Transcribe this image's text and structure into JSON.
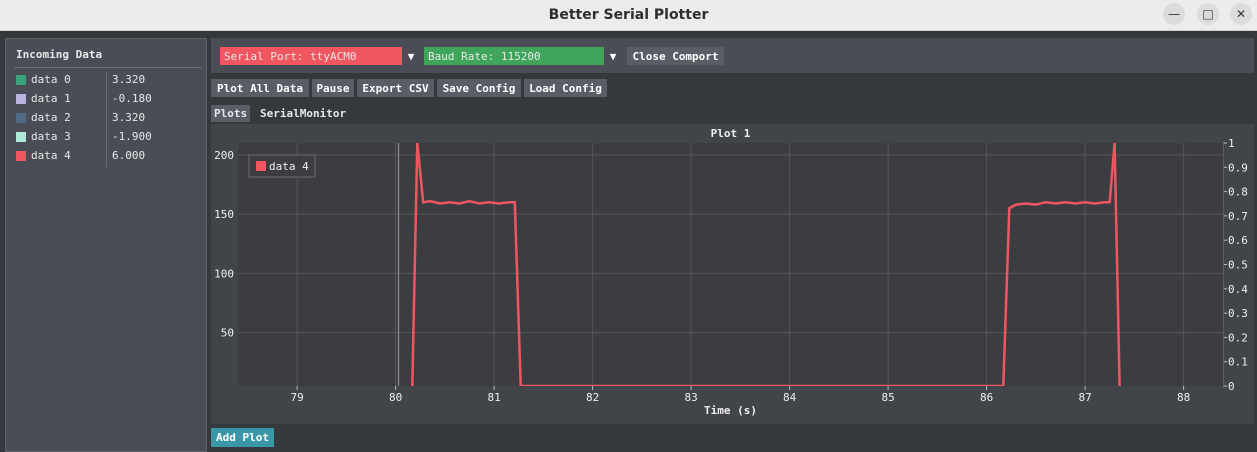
{
  "window": {
    "title": "Better Serial Plotter",
    "minimize_icon": "minimize-icon",
    "maximize_icon": "maximize-icon",
    "close_icon": "close-icon"
  },
  "incoming": {
    "title": "Incoming Data",
    "rows": [
      {
        "name": "data 0",
        "value": "3.320",
        "color": "#3ea37a"
      },
      {
        "name": "data 1",
        "value": "-0.180",
        "color": "#b9b3e0"
      },
      {
        "name": "data 2",
        "value": "3.320",
        "color": "#4f6a82"
      },
      {
        "name": "data 3",
        "value": "-1.900",
        "color": "#aee8d6"
      },
      {
        "name": "data 4",
        "value": "6.000",
        "color": "#f0565f"
      }
    ]
  },
  "toolbar": {
    "serial_port": "Serial Port: ttyACM0",
    "baud_rate": "Baud Rate: 115200",
    "close_comport": "Close Comport",
    "plot_all": "Plot All Data",
    "pause": "Pause",
    "export_csv": "Export CSV",
    "save_config": "Save Config",
    "load_config": "Load Config",
    "serial_port_color": "#f0565f",
    "baud_rate_color": "#3fa55a"
  },
  "tabs": {
    "plots": "Plots",
    "serial_monitor": "SerialMonitor"
  },
  "add_plot": "Add Plot",
  "chart_data": {
    "type": "line",
    "title": "Plot 1",
    "xlabel": "Time (s)",
    "xlim": [
      78.4,
      88.4
    ],
    "ylim": [
      5,
      210
    ],
    "y2lim": [
      0,
      1
    ],
    "x_ticks": [
      79,
      80,
      81,
      82,
      83,
      84,
      85,
      86,
      87,
      88
    ],
    "y_ticks": [
      50,
      100,
      150,
      200
    ],
    "y2_ticks": [
      "0",
      "0.1",
      "0.2",
      "0.3",
      "0.4",
      "0.5",
      "0.6",
      "0.7",
      "0.8",
      "0.9",
      "1"
    ],
    "grid": true,
    "legend": "top-left",
    "cursor_x": 80.03,
    "series": [
      {
        "name": "data 4",
        "color": "#f0565f",
        "points": [
          [
            80.17,
            5
          ],
          [
            80.22,
            210
          ],
          [
            80.28,
            160
          ],
          [
            80.35,
            161
          ],
          [
            80.45,
            159
          ],
          [
            80.55,
            160
          ],
          [
            80.65,
            159
          ],
          [
            80.75,
            161
          ],
          [
            80.85,
            159
          ],
          [
            80.95,
            160
          ],
          [
            81.05,
            159
          ],
          [
            81.15,
            160
          ],
          [
            81.21,
            160
          ],
          [
            81.27,
            5
          ],
          [
            86.17,
            5
          ],
          [
            86.23,
            155
          ],
          [
            86.3,
            158
          ],
          [
            86.4,
            159
          ],
          [
            86.5,
            158
          ],
          [
            86.6,
            160
          ],
          [
            86.7,
            159
          ],
          [
            86.8,
            160
          ],
          [
            86.9,
            159
          ],
          [
            87.0,
            160
          ],
          [
            87.1,
            159
          ],
          [
            87.2,
            160
          ],
          [
            87.25,
            160
          ],
          [
            87.3,
            210
          ],
          [
            87.35,
            5
          ]
        ]
      }
    ]
  }
}
